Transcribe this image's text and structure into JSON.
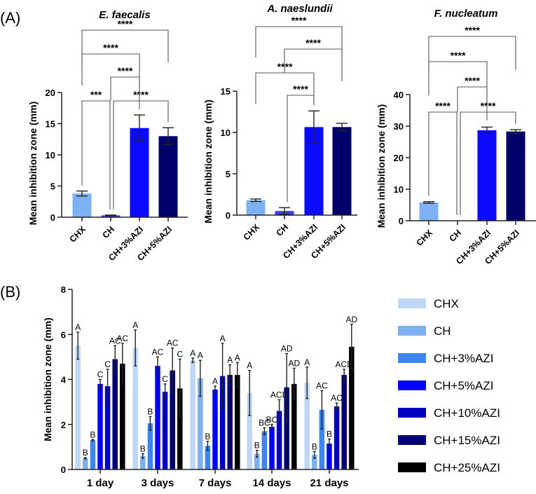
{
  "panel_labels": {
    "a": "(A)",
    "b": "(B)"
  },
  "chart_data": [
    {
      "type": "bar",
      "panel": "A",
      "title": "E. faecalis",
      "ylabel": "Mean inhibition zone (mm)",
      "ylim": [
        0,
        20
      ],
      "yticks": [
        0,
        5,
        10,
        15,
        20
      ],
      "categories": [
        "CHX",
        "CH",
        "CH+3%AZI",
        "CH+5%AZI"
      ],
      "values": [
        3.8,
        0.3,
        14.3,
        13.0
      ],
      "errors": [
        0.4,
        0.05,
        2.1,
        1.35
      ],
      "colors": [
        "#7eb0f4",
        "#3b3ff0",
        "#0a0aff",
        "#00006b"
      ],
      "comparisons": [
        {
          "a": 0,
          "b": 1,
          "level": 0,
          "label": "***"
        },
        {
          "a": 1,
          "b": 3,
          "level": 0,
          "label": "****"
        },
        {
          "a": 1,
          "b": 2,
          "level": 1,
          "label": "****"
        },
        {
          "a": 0,
          "b": 2,
          "level": 2,
          "label": "****"
        },
        {
          "a": 0,
          "b": 3,
          "level": 3,
          "label": "****"
        }
      ]
    },
    {
      "type": "bar",
      "panel": "A",
      "title": "A. naeslundii",
      "ylabel": "Mean inhibition zone (mm)",
      "ylim": [
        0,
        15
      ],
      "yticks": [
        0,
        5,
        10,
        15
      ],
      "categories": [
        "CHX",
        "CH",
        "CH+3%AZI",
        "CH+5%AZI"
      ],
      "values": [
        1.8,
        0.5,
        10.65,
        10.65
      ],
      "errors": [
        0.15,
        0.4,
        1.95,
        0.45
      ],
      "colors": [
        "#7eb0f4",
        "#3b3ff0",
        "#0a0aff",
        "#00006b"
      ],
      "comparisons": [
        {
          "a": 1,
          "b": 2,
          "level": 0,
          "label": "****"
        },
        {
          "a": 0,
          "b": 2,
          "level": 1,
          "label": "****"
        },
        {
          "a": 1,
          "b": 3,
          "level": 2,
          "label": "****"
        },
        {
          "a": 0,
          "b": 3,
          "level": 3,
          "label": "****"
        }
      ]
    },
    {
      "type": "bar",
      "panel": "A",
      "title": "F. nucleatum",
      "ylabel": "Mean inhibition zone (mm)",
      "ylim": [
        0,
        40
      ],
      "yticks": [
        0,
        10,
        20,
        30,
        40
      ],
      "categories": [
        "CHX",
        "CH",
        "CH+3%AZI",
        "CH+5%AZI"
      ],
      "values": [
        5.8,
        0,
        28.7,
        28.3
      ],
      "errors": [
        0.25,
        0,
        1.0,
        0.6
      ],
      "colors": [
        "#7eb0f4",
        "#3b3ff0",
        "#0a0aff",
        "#00006b"
      ],
      "comparisons": [
        {
          "a": 0,
          "b": 1,
          "level": 0,
          "label": "****"
        },
        {
          "a": 1,
          "b": 3,
          "level": 0,
          "label": "****"
        },
        {
          "a": 1,
          "b": 2,
          "level": 1,
          "label": "****"
        },
        {
          "a": 0,
          "b": 2,
          "level": 2,
          "label": "****"
        },
        {
          "a": 0,
          "b": 3,
          "level": 3,
          "label": "****"
        }
      ]
    },
    {
      "type": "bar",
      "panel": "B",
      "title": "",
      "ylabel": "Mean inhibition zone (mm)",
      "ylim": [
        0,
        8
      ],
      "yticks": [
        0,
        2,
        4,
        6,
        8
      ],
      "categories": [
        "1 day",
        "3 days",
        "7 days",
        "14 days",
        "21 days"
      ],
      "legend_position": "right",
      "series": [
        {
          "name": "CHX",
          "color": "#bfd7f5",
          "values": [
            5.5,
            5.4,
            4.85,
            3.4,
            3.85
          ],
          "errors": [
            0.6,
            0.8,
            0.1,
            1.0,
            0.7
          ],
          "letters": [
            "A",
            "A",
            "A",
            "A",
            "A"
          ]
        },
        {
          "name": "CH",
          "color": "#7db0f3",
          "values": [
            0.5,
            0.6,
            4.05,
            0.7,
            0.65
          ],
          "errors": [
            0.03,
            0.1,
            0.8,
            0.15,
            0.15
          ],
          "letters": [
            "B",
            "B",
            "A",
            "B",
            "B"
          ]
        },
        {
          "name": "CH+3%AZI",
          "color": "#3d86f0",
          "values": [
            1.3,
            2.05,
            1.05,
            1.7,
            2.65
          ],
          "errors": [
            0.03,
            0.3,
            0.2,
            0.15,
            0.85
          ],
          "letters": [
            "B",
            "B",
            "B",
            "BC",
            "AC"
          ]
        },
        {
          "name": "CH+5%AZI",
          "color": "#0000ff",
          "values": [
            3.8,
            4.6,
            3.55,
            1.9,
            1.15
          ],
          "errors": [
            0.2,
            0.4,
            0.15,
            0.1,
            0.2
          ],
          "letters": [
            "C",
            "AC",
            "A",
            "BC",
            "B"
          ]
        },
        {
          "name": "CH+10%AZI",
          "color": "#0000c0",
          "values": [
            3.7,
            3.45,
            4.15,
            2.6,
            2.8
          ],
          "errors": [
            0.75,
            0.35,
            1.45,
            0.5,
            0.15
          ],
          "letters": [
            "C",
            "C",
            "A",
            "ACD",
            "AC"
          ]
        },
        {
          "name": "CH+15%AZI",
          "color": "#000070",
          "values": [
            4.9,
            4.4,
            4.2,
            3.65,
            4.2
          ],
          "errors": [
            0.6,
            1.0,
            0.45,
            1.5,
            0.25
          ],
          "letters": [
            "AC",
            "AC",
            "A",
            "AD",
            "ACD"
          ]
        },
        {
          "name": "CH+25%AZI",
          "color": "#000000",
          "values": [
            4.7,
            3.6,
            4.2,
            3.8,
            5.45
          ],
          "errors": [
            0.9,
            1.3,
            0.55,
            0.7,
            1.0
          ],
          "letters": [
            "AC",
            "C",
            "A",
            "AD",
            "AD"
          ]
        }
      ]
    }
  ]
}
